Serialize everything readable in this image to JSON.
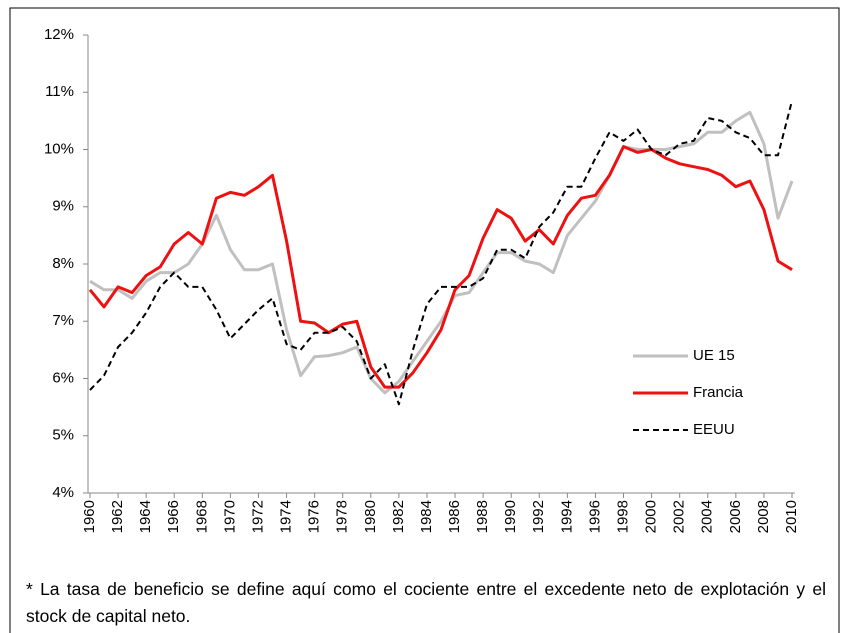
{
  "chart_data": {
    "type": "line",
    "x": [
      1960,
      1961,
      1962,
      1963,
      1964,
      1965,
      1966,
      1967,
      1968,
      1969,
      1970,
      1971,
      1972,
      1973,
      1974,
      1975,
      1976,
      1977,
      1978,
      1979,
      1980,
      1981,
      1982,
      1983,
      1984,
      1985,
      1986,
      1987,
      1988,
      1989,
      1990,
      1991,
      1992,
      1993,
      1994,
      1995,
      1996,
      1997,
      1998,
      1999,
      2000,
      2001,
      2002,
      2003,
      2004,
      2005,
      2006,
      2007,
      2008,
      2009,
      2010
    ],
    "xlim": [
      1959.8,
      2010.2
    ],
    "xticks": [
      1960,
      1962,
      1964,
      1966,
      1968,
      1970,
      1972,
      1974,
      1976,
      1978,
      1980,
      1982,
      1984,
      1986,
      1988,
      1990,
      1992,
      1994,
      1996,
      1998,
      2000,
      2002,
      2004,
      2006,
      2008,
      2010
    ],
    "ylim": [
      4,
      12
    ],
    "yticks": [
      {
        "value": 4,
        "label": "4%"
      },
      {
        "value": 5,
        "label": "5%"
      },
      {
        "value": 6,
        "label": "6%"
      },
      {
        "value": 7,
        "label": "7%"
      },
      {
        "value": 8,
        "label": "8%"
      },
      {
        "value": 9,
        "label": "9%"
      },
      {
        "value": 10,
        "label": "10%"
      },
      {
        "value": 11,
        "label": "11%"
      },
      {
        "value": 12,
        "label": "12%"
      }
    ],
    "legend": "lower right",
    "series": [
      {
        "name": "UE 15",
        "color": "#c0c0c0",
        "values": [
          7.7,
          7.55,
          7.55,
          7.4,
          7.7,
          7.85,
          7.85,
          8.0,
          8.35,
          8.85,
          8.25,
          7.9,
          7.9,
          8.0,
          6.85,
          6.05,
          6.38,
          6.4,
          6.45,
          6.55,
          6.0,
          5.75,
          5.95,
          6.3,
          6.65,
          7.0,
          7.45,
          7.5,
          7.85,
          8.2,
          8.2,
          8.05,
          8.0,
          7.85,
          8.5,
          8.8,
          9.1,
          9.55,
          10.05,
          10.0,
          10.0,
          10.0,
          10.05,
          10.1,
          10.3,
          10.3,
          10.5,
          10.65,
          10.1,
          8.8,
          9.45
        ]
      },
      {
        "name": "Francia",
        "color": "#ee1111",
        "values": [
          7.55,
          7.25,
          7.6,
          7.5,
          7.8,
          7.95,
          8.35,
          8.55,
          8.35,
          9.15,
          9.25,
          9.2,
          9.35,
          9.55,
          8.4,
          7.0,
          6.97,
          6.8,
          6.95,
          7.0,
          6.2,
          5.85,
          5.85,
          6.1,
          6.45,
          6.85,
          7.55,
          7.8,
          8.45,
          8.95,
          8.8,
          8.4,
          8.6,
          8.35,
          8.85,
          9.15,
          9.2,
          9.55,
          10.05,
          9.95,
          10.0,
          9.85,
          9.75,
          9.7,
          9.65,
          9.55,
          9.35,
          9.45,
          8.95,
          8.05,
          7.9
        ]
      },
      {
        "name": "EEUU",
        "color": "#000000",
        "dash": true,
        "values": [
          5.8,
          6.05,
          6.55,
          6.8,
          7.15,
          7.6,
          7.85,
          7.6,
          7.6,
          7.2,
          6.7,
          6.95,
          7.2,
          7.4,
          6.6,
          6.5,
          6.8,
          6.8,
          6.9,
          6.65,
          6.0,
          6.25,
          5.55,
          6.5,
          7.3,
          7.6,
          7.6,
          7.6,
          7.75,
          8.25,
          8.25,
          8.1,
          8.65,
          8.9,
          9.35,
          9.35,
          9.85,
          10.3,
          10.15,
          10.35,
          10.0,
          9.9,
          10.1,
          10.15,
          10.55,
          10.5,
          10.3,
          10.2,
          9.9,
          9.9,
          10.85
        ]
      }
    ],
    "footnote": "* La tasa de beneficio se define aquí como el cociente entre el excedente neto de explotación y el stock de capital neto."
  }
}
